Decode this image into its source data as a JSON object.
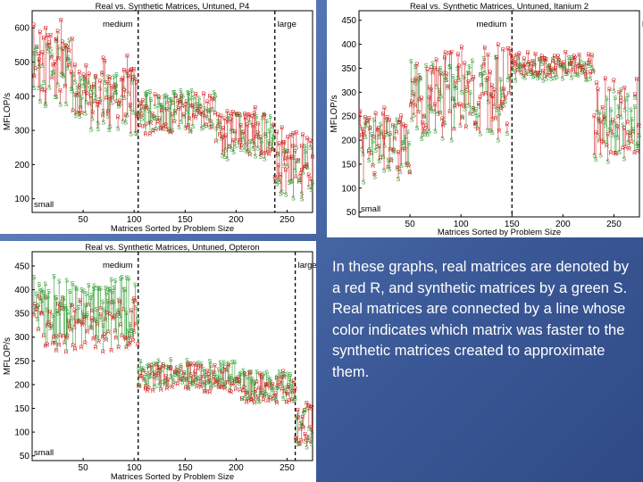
{
  "caption": "In these graphs, real matrices are denoted by a red R, and synthetic matrices by a green S. Real matrices are connected by a line whose color indicates which matrix was faster to the synthetic matrices created to approximate them.",
  "colors": {
    "real": "#d42020",
    "synthetic": "#2e9a2e",
    "background": "#4a68a8"
  },
  "chart_data": [
    {
      "type": "scatter",
      "title": "Real vs. Synthetic Matrices, Untuned, P4",
      "xlabel": "Matrices Sorted by Problem Size",
      "ylabel": "MFLOP/s",
      "xlim": [
        0,
        275
      ],
      "ylim": [
        60,
        650
      ],
      "xticks": [
        50,
        100,
        150,
        200,
        250
      ],
      "yticks": [
        100,
        200,
        300,
        400,
        500,
        600
      ],
      "regions": [
        {
          "label": "small",
          "x": 0
        },
        {
          "label": "medium",
          "x": 104
        },
        {
          "label": "large",
          "x": 238
        }
      ],
      "markers": {
        "real": "R",
        "synthetic": "S"
      },
      "segments": [
        {
          "x_start": 1,
          "x_end": 40,
          "real_mean": 520,
          "synthetic_mean": 470,
          "spread": 110,
          "count": 36
        },
        {
          "x_start": 40,
          "x_end": 104,
          "real_mean": 430,
          "synthetic_mean": 380,
          "spread": 90,
          "count": 60
        },
        {
          "x_start": 104,
          "x_end": 180,
          "real_mean": 350,
          "synthetic_mean": 360,
          "spread": 60,
          "count": 70
        },
        {
          "x_start": 180,
          "x_end": 238,
          "real_mean": 300,
          "synthetic_mean": 280,
          "spread": 70,
          "count": 50
        },
        {
          "x_start": 238,
          "x_end": 275,
          "real_mean": 230,
          "synthetic_mean": 180,
          "spread": 80,
          "count": 35
        }
      ]
    },
    {
      "type": "scatter",
      "title": "Real vs. Synthetic Matrices, Untuned, Itanium 2",
      "xlabel": "Matrices Sorted by Problem Size",
      "ylabel": "MFLOP/s",
      "xlim": [
        0,
        275
      ],
      "ylim": [
        40,
        470
      ],
      "xticks": [
        50,
        100,
        150,
        200,
        250
      ],
      "yticks": [
        50,
        100,
        150,
        200,
        250,
        300,
        350,
        400,
        450
      ],
      "regions": [
        {
          "label": "small",
          "x": 0
        },
        {
          "label": "medium",
          "x": 150
        },
        {
          "label": "large",
          "x": 275
        }
      ],
      "markers": {
        "real": "R",
        "synthetic": "S"
      },
      "segments": [
        {
          "x_start": 1,
          "x_end": 50,
          "real_mean": 200,
          "synthetic_mean": 180,
          "spread": 70,
          "count": 45
        },
        {
          "x_start": 50,
          "x_end": 150,
          "real_mean": 310,
          "synthetic_mean": 290,
          "spread": 90,
          "count": 90
        },
        {
          "x_start": 150,
          "x_end": 230,
          "real_mean": 360,
          "synthetic_mean": 350,
          "spread": 25,
          "count": 70
        },
        {
          "x_start": 230,
          "x_end": 275,
          "real_mean": 250,
          "synthetic_mean": 230,
          "spread": 80,
          "count": 40
        }
      ]
    },
    {
      "type": "scatter",
      "title": "Real vs. Synthetic Matrices, Untuned, Opteron",
      "xlabel": "Matrices Sorted by Problem Size",
      "ylabel": "MFLOP/s",
      "xlim": [
        0,
        275
      ],
      "ylim": [
        40,
        480
      ],
      "xticks": [
        50,
        100,
        150,
        200,
        250
      ],
      "yticks": [
        50,
        100,
        150,
        200,
        250,
        300,
        350,
        400,
        450
      ],
      "regions": [
        {
          "label": "small",
          "x": 0
        },
        {
          "label": "medium",
          "x": 104
        },
        {
          "label": "large",
          "x": 258
        }
      ],
      "markers": {
        "real": "R",
        "synthetic": "S"
      },
      "segments": [
        {
          "x_start": 1,
          "x_end": 104,
          "real_mean": 330,
          "synthetic_mean": 370,
          "spread": 60,
          "count": 95
        },
        {
          "x_start": 104,
          "x_end": 200,
          "real_mean": 215,
          "synthetic_mean": 225,
          "spread": 30,
          "count": 90
        },
        {
          "x_start": 200,
          "x_end": 258,
          "real_mean": 195,
          "synthetic_mean": 200,
          "spread": 35,
          "count": 55
        },
        {
          "x_start": 258,
          "x_end": 275,
          "real_mean": 120,
          "synthetic_mean": 110,
          "spread": 45,
          "count": 18
        }
      ]
    }
  ]
}
